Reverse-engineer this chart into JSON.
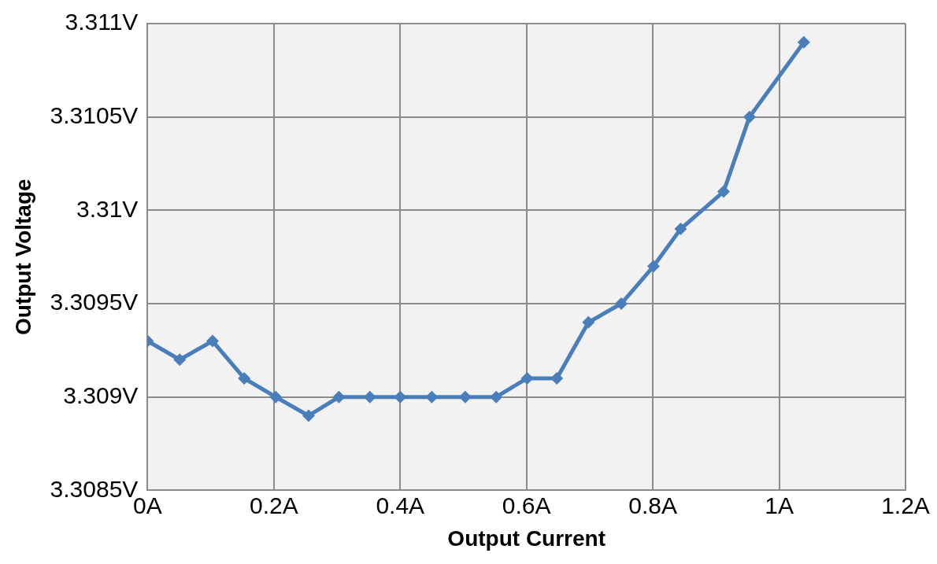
{
  "chart_data": {
    "type": "line",
    "xlabel": "Output Current",
    "ylabel": "Output Voltage",
    "x": [
      0,
      0.051,
      0.103,
      0.153,
      0.203,
      0.255,
      0.303,
      0.352,
      0.4,
      0.45,
      0.503,
      0.552,
      0.601,
      0.648,
      0.698,
      0.75,
      0.801,
      0.844,
      0.912,
      0.953,
      1.039
    ],
    "series": [
      {
        "color": "#4a7ebb",
        "values": [
          3.3093,
          3.3092,
          3.3093,
          3.3091,
          3.309,
          3.3089,
          3.309,
          3.309,
          3.309,
          3.309,
          3.309,
          3.309,
          3.3091,
          3.3091,
          3.3094,
          3.3095,
          3.3097,
          3.3099,
          3.3101,
          3.3105,
          3.3109
        ]
      }
    ],
    "xlim": [
      0,
      1.2
    ],
    "xticks": [
      {
        "value": 0,
        "label": "0A"
      },
      {
        "value": 0.2,
        "label": "0.2A"
      },
      {
        "value": 0.4,
        "label": "0.4A"
      },
      {
        "value": 0.6,
        "label": "0.6A"
      },
      {
        "value": 0.8,
        "label": "0.8A"
      },
      {
        "value": 1,
        "label": "1A"
      },
      {
        "value": 1.2,
        "label": "1.2A"
      }
    ],
    "ylim": [
      3.3085,
      3.311
    ],
    "yticks": [
      {
        "value": 3.3085,
        "label": "3.3085V"
      },
      {
        "value": 3.309,
        "label": "3.309V"
      },
      {
        "value": 3.3095,
        "label": "3.3095V"
      },
      {
        "value": 3.31,
        "label": "3.31V"
      },
      {
        "value": 3.3105,
        "label": "3.3105V"
      },
      {
        "value": 3.311,
        "label": "3.311V"
      }
    ],
    "grid": true,
    "legend": false,
    "marker": "diamond",
    "line_style": "solid"
  }
}
